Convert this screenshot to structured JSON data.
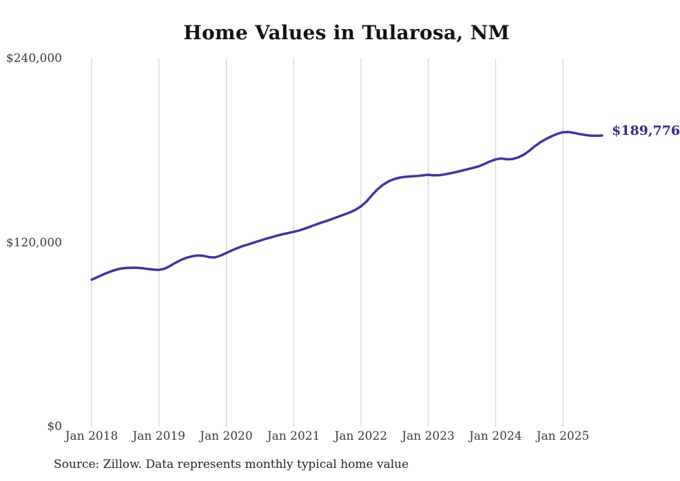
{
  "page": {
    "background_color": "#ffffff"
  },
  "source_note": "Source: Zillow. Data represents monthly typical home value",
  "colors": {
    "line": "#3b35a0",
    "end_label_text": "#312c87",
    "gridline": "#c9c9c9",
    "axis_text": "#3a3a3a",
    "title_text": "#111111"
  },
  "chart_data": {
    "type": "line",
    "title": "Home Values in Tularosa, NM",
    "xlabel": "",
    "ylabel": "",
    "ylim": [
      0,
      240000
    ],
    "grid": "vertical-gridlines-only",
    "legend": "none",
    "x_unit": "month",
    "x_range_start": "Jan 2018",
    "x_range_end": "Aug 2025",
    "x_tick_labels": [
      "Jan 2018",
      "Jan 2019",
      "Jan 2020",
      "Jan 2021",
      "Jan 2022",
      "Jan 2023",
      "Jan 2024",
      "Jan 2025"
    ],
    "x_tick_month_indices": [
      0,
      12,
      24,
      36,
      48,
      60,
      72,
      84
    ],
    "y_ticks": [
      {
        "label": "$0",
        "value": 0
      },
      {
        "label": "$120,000",
        "value": 120000
      },
      {
        "label": "$240,000",
        "value": 240000
      }
    ],
    "end_label": "$189,776",
    "latest_value": 189776,
    "series": [
      {
        "name": "Monthly typical home value",
        "color": "#3b35a0",
        "values": [
          95800,
          97400,
          99100,
          100600,
          101900,
          102900,
          103400,
          103600,
          103600,
          103300,
          102800,
          102400,
          102200,
          103000,
          104800,
          106900,
          108800,
          110200,
          111100,
          111600,
          111300,
          110500,
          110300,
          111500,
          113200,
          114900,
          116400,
          117800,
          118900,
          120100,
          121200,
          122400,
          123400,
          124500,
          125400,
          126200,
          127000,
          127900,
          129100,
          130400,
          131800,
          133100,
          134200,
          135500,
          136900,
          138200,
          139600,
          141300,
          143600,
          146800,
          151000,
          154900,
          157800,
          160000,
          161500,
          162400,
          162900,
          163200,
          163400,
          163800,
          164200,
          163800,
          163900,
          164500,
          165200,
          166000,
          166900,
          167800,
          168700,
          169700,
          171200,
          172900,
          174200,
          174800,
          174300,
          174400,
          175500,
          177200,
          179800,
          182800,
          185400,
          187500,
          189300,
          190900,
          191900,
          192100,
          191500,
          190700,
          190100,
          189700,
          189600,
          189776
        ]
      }
    ]
  }
}
